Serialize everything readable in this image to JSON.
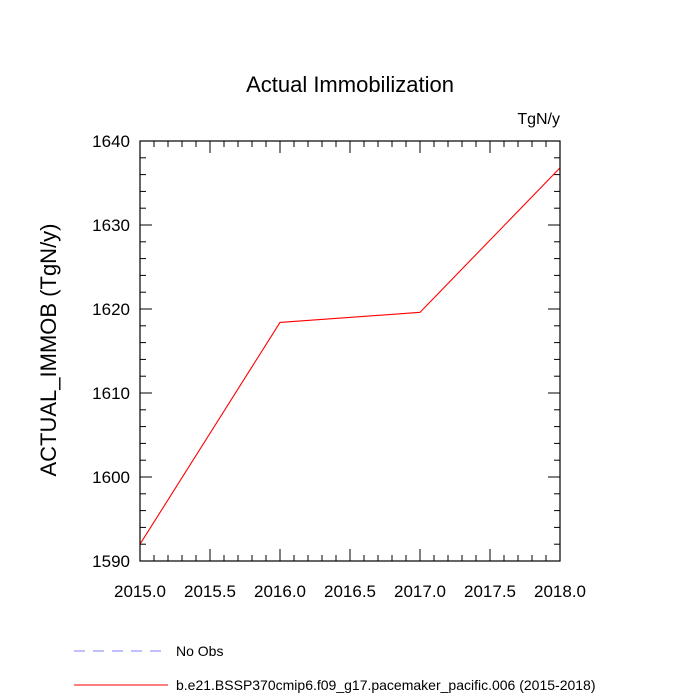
{
  "chart_data": {
    "type": "line",
    "title": "Actual Immobilization",
    "units_label": "TgN/y",
    "xlabel": "",
    "ylabel": "ACTUAL_IMMOB  (TgN/y)",
    "xlim": [
      2015.0,
      2018.0
    ],
    "ylim": [
      1590,
      1640
    ],
    "xticks": [
      2015.0,
      2015.5,
      2016.0,
      2016.5,
      2017.0,
      2017.5,
      2018.0
    ],
    "xtick_labels": [
      "2015.0",
      "2015.5",
      "2016.0",
      "2016.5",
      "2017.0",
      "2017.5",
      "2018.0"
    ],
    "yticks": [
      1590,
      1600,
      1610,
      1620,
      1630,
      1640
    ],
    "ytick_labels": [
      "1590",
      "1600",
      "1610",
      "1620",
      "1630",
      "1640"
    ],
    "grid": false,
    "legend_position": "bottom-left",
    "series": [
      {
        "name": "b.e21.BSSP370cmip6.f09_g17.pacemaker_pacific.006 (2015-2018)",
        "color": "#ff0000",
        "dash": "solid",
        "x": [
          2015.0,
          2016.0,
          2017.0,
          2018.0
        ],
        "y": [
          1592.0,
          1618.4,
          1619.6,
          1636.8
        ]
      }
    ],
    "legend": [
      {
        "label": "No Obs",
        "color": "#8080ff",
        "dash": "dashed"
      },
      {
        "label": "b.e21.BSSP370cmip6.f09_g17.pacemaker_pacific.006 (2015-2018)",
        "color": "#ff0000",
        "dash": "solid"
      }
    ]
  }
}
